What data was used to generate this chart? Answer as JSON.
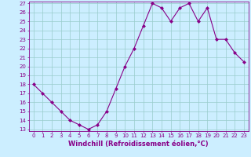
{
  "x": [
    0,
    1,
    2,
    3,
    4,
    5,
    6,
    7,
    8,
    9,
    10,
    11,
    12,
    13,
    14,
    15,
    16,
    17,
    18,
    19,
    20,
    21,
    22,
    23
  ],
  "y": [
    18,
    17,
    16,
    15,
    14,
    13.5,
    13,
    13.5,
    15,
    17.5,
    20,
    22,
    24.5,
    27,
    26.5,
    25,
    26.5,
    27,
    25,
    26.5,
    23,
    23,
    21.5,
    20.5
  ],
  "line_color": "#880088",
  "marker": "D",
  "marker_size": 2.0,
  "xlabel": "Windchill (Refroidissement éolien,°C)",
  "ylim": [
    13,
    27
  ],
  "xlim": [
    -0.5,
    23.5
  ],
  "yticks": [
    13,
    14,
    15,
    16,
    17,
    18,
    19,
    20,
    21,
    22,
    23,
    24,
    25,
    26,
    27
  ],
  "xticks": [
    0,
    1,
    2,
    3,
    4,
    5,
    6,
    7,
    8,
    9,
    10,
    11,
    12,
    13,
    14,
    15,
    16,
    17,
    18,
    19,
    20,
    21,
    22,
    23
  ],
  "bg_color": "#cceeff",
  "grid_color": "#99cccc",
  "tick_fontsize": 5.0,
  "xlabel_fontsize": 6.0,
  "line_width": 0.8
}
